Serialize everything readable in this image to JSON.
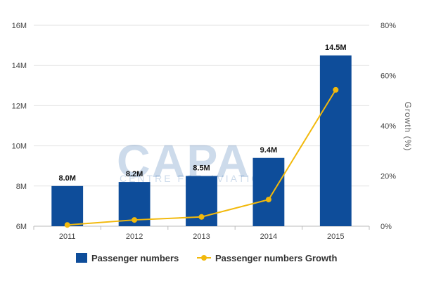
{
  "chart_data": {
    "type": "bar",
    "categories": [
      "2011",
      "2012",
      "2013",
      "2014",
      "2015"
    ],
    "series": [
      {
        "name": "Passenger numbers",
        "type": "bar",
        "axis": "left",
        "color": "#0e4d9a",
        "values": [
          8.0,
          8.2,
          8.5,
          9.4,
          14.5
        ],
        "data_labels": [
          "8.0M",
          "8.2M",
          "8.5M",
          "9.4M",
          "14.5M"
        ]
      },
      {
        "name": "Passenger numbers Growth",
        "type": "line",
        "axis": "right",
        "color": "#f2b90c",
        "values": [
          0.5,
          2.5,
          3.7,
          10.6,
          54.3
        ]
      }
    ],
    "left_axis": {
      "ylim": [
        6,
        16
      ],
      "ticks": [
        6,
        8,
        10,
        12,
        14,
        16
      ],
      "tick_labels": [
        "6M",
        "8M",
        "10M",
        "12M",
        "14M",
        "16M"
      ]
    },
    "right_axis": {
      "ylim": [
        0,
        80
      ],
      "ticks": [
        0,
        20,
        40,
        60,
        80
      ],
      "tick_labels": [
        "0%",
        "20%",
        "40%",
        "60%",
        "80%"
      ],
      "label": "Growth (%)"
    },
    "grid": true,
    "legend": "bottom-center"
  },
  "watermark": {
    "logo": "CAPA",
    "tagline": "CENTRE FOR AVIATION"
  }
}
